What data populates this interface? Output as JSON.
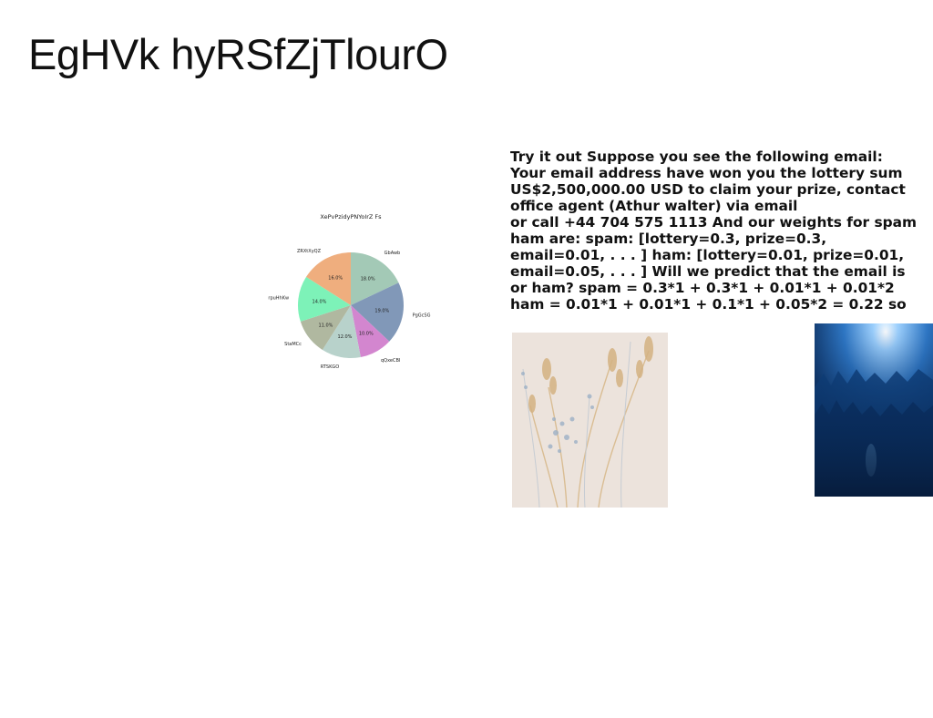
{
  "page": {
    "title": "EgHVk hyRSfZjTlourO"
  },
  "chart_data": {
    "type": "pie",
    "title": "XePvPzidyPNYoIrZ Fs",
    "slices": [
      {
        "label": "GbAwb",
        "value": 18.0,
        "pct_label": "18.0%",
        "color": "#a3c9b6"
      },
      {
        "label": "PgGcSG",
        "value": 19.0,
        "pct_label": "19.0%",
        "color": "#8198b8"
      },
      {
        "label": "qQxeCBI",
        "value": 10.0,
        "pct_label": "10.0%",
        "color": "#d386cf"
      },
      {
        "label": "RTSKGO",
        "value": 12.0,
        "pct_label": "12.0%",
        "color": "#b8d2cb"
      },
      {
        "label": "StaMCc",
        "value": 11.0,
        "pct_label": "11.0%",
        "color": "#b0b8a0"
      },
      {
        "label": "rpuHhKw",
        "value": 14.0,
        "pct_label": "14.0%",
        "color": "#7df2b8"
      },
      {
        "label": "ZRXtXyQZ",
        "value": 16.0,
        "pct_label": "16.0%",
        "color": "#efae7e"
      }
    ]
  },
  "text_block": {
    "lines": [
      "Try it out Suppose you see the following email:",
      "Your email address have won you the lottery sum",
      "US$2,500,000.00 USD to claim your prize, contact",
      "office agent (Athur walter) via email",
      "or call +44 704 575 1113 And our weights for spam",
      "ham are: spam: [lottery=0.3, prize=0.3,",
      "email=0.01, . . . ] ham: [lottery=0.01, prize=0.01,",
      "email=0.05, . . . ] Will we predict that the email is",
      "or ham? spam = 0.3*1 + 0.3*1 + 0.01*1 + 0.01*2",
      "ham = 0.01*1 + 0.01*1 + 0.1*1 + 0.05*2 = 0.22 so"
    ]
  }
}
